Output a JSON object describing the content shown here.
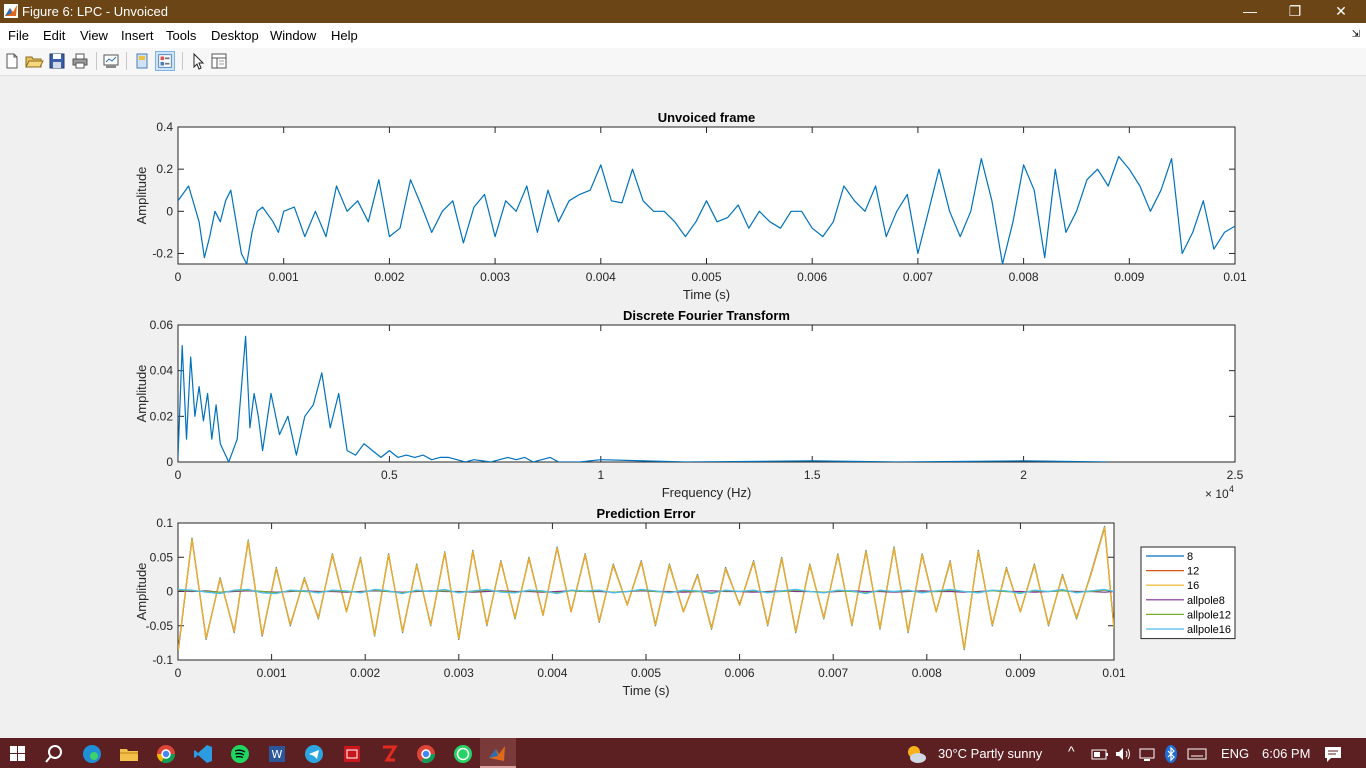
{
  "window": {
    "title": "Figure 6: LPC - Unvoiced",
    "minimize_glyph": "—",
    "restore_glyph": "❐",
    "close_glyph": "✕"
  },
  "menu": {
    "items": [
      "File",
      "Edit",
      "View",
      "Insert",
      "Tools",
      "Desktop",
      "Window",
      "Help"
    ],
    "expand_glyph": "⇲"
  },
  "toolbar": {
    "icons": [
      "new-figure-icon",
      "open-file-icon",
      "save-icon",
      "print-icon",
      "link-plot-icon",
      "hide-plot-tools-icon",
      "show-plot-tools-icon",
      "edit-plot-pointer-icon",
      "property-inspector-icon"
    ]
  },
  "colors": {
    "titlebar": "#6b4515",
    "taskbar": "#5c1f22",
    "series_8": "#0072bd",
    "series_12": "#d95319",
    "series_16": "#edb120",
    "series_allpole8": "#7e2f8e",
    "series_allpole12": "#77ac30",
    "series_allpole16": "#4dbeee"
  },
  "chart_data": [
    {
      "type": "line",
      "title": "Unvoiced frame",
      "xlabel": "Time (s)",
      "ylabel": "Amplitude",
      "xlim": [
        0,
        0.01
      ],
      "ylim": [
        -0.25,
        0.4
      ],
      "xticks": [
        0,
        0.001,
        0.002,
        0.003,
        0.004,
        0.005,
        0.006,
        0.007,
        0.008,
        0.009,
        0.01
      ],
      "xtick_labels": [
        "0",
        "0.001",
        "0.002",
        "0.003",
        "0.004",
        "0.005",
        "0.006",
        "0.007",
        "0.008",
        "0.009",
        "0.01"
      ],
      "yticks": [
        -0.2,
        0,
        0.2,
        0.4
      ],
      "ytick_labels": [
        "-0.2",
        "0",
        "0.2",
        "0.4"
      ],
      "grid": false,
      "series": [
        {
          "color": "#0072bd",
          "x": [
            0,
            0.0001,
            0.0002,
            0.00025,
            0.0003,
            0.00035,
            0.0004,
            0.00045,
            0.0005,
            0.0006,
            0.00065,
            0.0007,
            0.00075,
            0.0008,
            0.0009,
            0.00095,
            0.001,
            0.0011,
            0.0012,
            0.0013,
            0.0014,
            0.0015,
            0.0016,
            0.0017,
            0.0018,
            0.0019,
            0.002,
            0.0021,
            0.0022,
            0.0023,
            0.0024,
            0.0025,
            0.0026,
            0.0027,
            0.0028,
            0.0029,
            0.003,
            0.0031,
            0.0032,
            0.0033,
            0.0034,
            0.0035,
            0.0036,
            0.0037,
            0.0038,
            0.0039,
            0.004,
            0.0041,
            0.0042,
            0.0043,
            0.0044,
            0.0045,
            0.0046,
            0.0047,
            0.0048,
            0.0049,
            0.005,
            0.0051,
            0.0052,
            0.0053,
            0.0054,
            0.0055,
            0.0056,
            0.0057,
            0.0058,
            0.0059,
            0.006,
            0.0061,
            0.0062,
            0.0063,
            0.0064,
            0.0065,
            0.0066,
            0.0067,
            0.0068,
            0.0069,
            0.007,
            0.0071,
            0.0072,
            0.0073,
            0.0074,
            0.0075,
            0.0076,
            0.0077,
            0.0078,
            0.0079,
            0.008,
            0.0081,
            0.0082,
            0.0083,
            0.0084,
            0.0085,
            0.0086,
            0.0087,
            0.0088,
            0.0089,
            0.009,
            0.0091,
            0.0092,
            0.0093,
            0.0094,
            0.0095,
            0.0096,
            0.0097,
            0.0098,
            0.0099,
            0.01
          ],
          "y": [
            0.05,
            0.12,
            -0.05,
            -0.22,
            -0.12,
            0.0,
            -0.05,
            0.05,
            0.1,
            -0.2,
            -0.25,
            -0.1,
            0.0,
            0.02,
            -0.05,
            -0.1,
            0.0,
            0.02,
            -0.12,
            0.0,
            -0.12,
            0.12,
            0.0,
            0.05,
            -0.05,
            0.15,
            -0.12,
            -0.08,
            0.15,
            0.03,
            -0.1,
            0.0,
            0.05,
            -0.15,
            0.02,
            0.08,
            -0.12,
            0.05,
            0.0,
            0.12,
            -0.1,
            0.1,
            -0.05,
            0.05,
            0.08,
            0.1,
            0.22,
            0.05,
            0.04,
            0.2,
            0.05,
            0.0,
            0.0,
            -0.05,
            -0.12,
            -0.05,
            0.05,
            -0.05,
            -0.03,
            0.03,
            -0.08,
            0.0,
            -0.05,
            -0.08,
            0.0,
            0.0,
            -0.08,
            -0.12,
            -0.05,
            0.12,
            0.05,
            0.0,
            0.12,
            -0.12,
            0.0,
            0.08,
            -0.2,
            0.0,
            0.2,
            0.0,
            -0.12,
            0.0,
            0.25,
            0.05,
            -0.25,
            -0.05,
            0.22,
            0.1,
            -0.22,
            0.2,
            -0.1,
            0.0,
            0.15,
            0.2,
            0.12,
            0.26,
            0.2,
            0.12,
            0.0,
            0.1,
            0.25,
            -0.2,
            -0.1,
            0.05,
            -0.18,
            -0.1,
            -0.07
          ]
        }
      ]
    },
    {
      "type": "line",
      "title": "Discrete Fourier Transform",
      "xlabel": "Frequency (Hz)",
      "ylabel": "Amplitude",
      "xlim": [
        0,
        25000
      ],
      "ylim": [
        0,
        0.06
      ],
      "xticks": [
        0,
        5000,
        10000,
        15000,
        20000,
        25000
      ],
      "xtick_labels": [
        "0",
        "0.5",
        "1",
        "1.5",
        "2",
        "2.5"
      ],
      "yticks": [
        0,
        0.02,
        0.04,
        0.06
      ],
      "ytick_labels": [
        "0",
        "0.02",
        "0.04",
        "0.06"
      ],
      "x_exponent_base": "× 10",
      "x_exponent_power": "4",
      "grid": false,
      "series": [
        {
          "color": "#0072bd",
          "x": [
            0,
            100,
            200,
            300,
            400,
            500,
            600,
            700,
            800,
            900,
            1000,
            1200,
            1300,
            1400,
            1600,
            1700,
            1800,
            1900,
            2000,
            2200,
            2400,
            2600,
            2800,
            3000,
            3200,
            3400,
            3600,
            3800,
            4000,
            4200,
            4400,
            4600,
            4800,
            5000,
            5200,
            5400,
            5600,
            5800,
            6000,
            6200,
            6400,
            6600,
            6800,
            7000,
            7400,
            7800,
            8000,
            8200,
            8400,
            8600,
            8800,
            9000,
            9500,
            10000,
            12000,
            15000,
            17000,
            20000,
            22000
          ],
          "y": [
            0.002,
            0.051,
            0.01,
            0.046,
            0.02,
            0.033,
            0.018,
            0.03,
            0.01,
            0.025,
            0.008,
            0.0,
            0.005,
            0.01,
            0.055,
            0.015,
            0.03,
            0.02,
            0.005,
            0.03,
            0.012,
            0.02,
            0.003,
            0.02,
            0.025,
            0.039,
            0.015,
            0.03,
            0.005,
            0.003,
            0.008,
            0.005,
            0.002,
            0.005,
            0.002,
            0.003,
            0.002,
            0.003,
            0.001,
            0.002,
            0.002,
            0.001,
            0.0,
            0.001,
            0.0,
            0.002,
            0.001,
            0.002,
            0.0,
            0.001,
            0.002,
            0.0,
            0.0,
            0.001,
            0.0,
            0.0005,
            0.0,
            0.0005,
            0.0
          ]
        }
      ]
    },
    {
      "type": "line",
      "title": "Prediction Error",
      "xlabel": "Time (s)",
      "ylabel": "Amplitude",
      "xlim": [
        0,
        0.01
      ],
      "ylim": [
        -0.1,
        0.1
      ],
      "xticks": [
        0,
        0.001,
        0.002,
        0.003,
        0.004,
        0.005,
        0.006,
        0.007,
        0.008,
        0.009,
        0.01
      ],
      "xtick_labels": [
        "0",
        "0.001",
        "0.002",
        "0.003",
        "0.004",
        "0.005",
        "0.006",
        "0.007",
        "0.008",
        "0.009",
        "0.01"
      ],
      "yticks": [
        -0.1,
        -0.05,
        0,
        0.05,
        0.1
      ],
      "ytick_labels": [
        "-0.1",
        "-0.05",
        "0",
        "0.05",
        "0.1"
      ],
      "grid": false,
      "legend_position": "outside-right",
      "x": [
        0,
        0.00015,
        0.0003,
        0.00045,
        0.0006,
        0.00075,
        0.0009,
        0.00105,
        0.0012,
        0.00135,
        0.0015,
        0.00165,
        0.0018,
        0.00195,
        0.0021,
        0.00225,
        0.0024,
        0.00255,
        0.0027,
        0.00285,
        0.003,
        0.00315,
        0.0033,
        0.00345,
        0.0036,
        0.00375,
        0.0039,
        0.00405,
        0.0042,
        0.00435,
        0.0045,
        0.00465,
        0.0048,
        0.00495,
        0.0051,
        0.00525,
        0.0054,
        0.00555,
        0.0057,
        0.00585,
        0.006,
        0.00615,
        0.0063,
        0.00645,
        0.0066,
        0.00675,
        0.0069,
        0.00705,
        0.0072,
        0.00735,
        0.0075,
        0.00765,
        0.0078,
        0.00795,
        0.0081,
        0.00825,
        0.0084,
        0.00855,
        0.0087,
        0.00885,
        0.009,
        0.00915,
        0.0093,
        0.00945,
        0.0096,
        0.00975,
        0.0099,
        0.01
      ],
      "series": [
        {
          "name": "8",
          "color": "#0072bd",
          "y": [
            -0.09,
            0.078,
            -0.07,
            0.02,
            -0.06,
            0.075,
            -0.065,
            0.035,
            -0.05,
            0.02,
            -0.04,
            0.055,
            -0.03,
            0.05,
            -0.065,
            0.055,
            -0.06,
            0.04,
            -0.05,
            0.058,
            -0.07,
            0.06,
            -0.05,
            0.045,
            -0.04,
            0.05,
            -0.035,
            0.065,
            -0.03,
            0.055,
            -0.045,
            0.04,
            -0.02,
            0.045,
            -0.05,
            0.04,
            -0.03,
            0.025,
            -0.055,
            0.035,
            -0.02,
            0.045,
            -0.05,
            0.05,
            -0.06,
            0.04,
            -0.04,
            0.055,
            -0.05,
            0.06,
            -0.055,
            0.065,
            -0.06,
            0.055,
            -0.03,
            0.045,
            -0.085,
            0.06,
            -0.05,
            0.035,
            -0.03,
            0.04,
            -0.05,
            0.025,
            -0.04,
            0.025,
            0.095,
            -0.055
          ]
        },
        {
          "name": "12",
          "color": "#d95319",
          "y": [
            -0.088,
            0.076,
            -0.068,
            0.018,
            -0.058,
            0.073,
            -0.064,
            0.033,
            -0.048,
            0.018,
            -0.038,
            0.053,
            -0.029,
            0.048,
            -0.063,
            0.053,
            -0.058,
            0.038,
            -0.048,
            0.056,
            -0.068,
            0.058,
            -0.048,
            0.043,
            -0.038,
            0.048,
            -0.034,
            0.063,
            -0.029,
            0.053,
            -0.043,
            0.038,
            -0.019,
            0.043,
            -0.048,
            0.038,
            -0.029,
            0.023,
            -0.053,
            0.033,
            -0.019,
            0.043,
            -0.048,
            0.048,
            -0.058,
            0.038,
            -0.038,
            0.053,
            -0.048,
            0.058,
            -0.053,
            0.063,
            -0.058,
            0.053,
            -0.029,
            0.043,
            -0.083,
            0.058,
            -0.048,
            0.033,
            -0.029,
            0.038,
            -0.048,
            0.023,
            -0.038,
            0.023,
            0.093,
            -0.053
          ]
        },
        {
          "name": "16",
          "color": "#edb120",
          "y": [
            -0.087,
            0.077,
            -0.069,
            0.019,
            -0.059,
            0.074,
            -0.063,
            0.034,
            -0.049,
            0.019,
            -0.039,
            0.054,
            -0.03,
            0.049,
            -0.064,
            0.054,
            -0.059,
            0.039,
            -0.049,
            0.057,
            -0.069,
            0.059,
            -0.049,
            0.044,
            -0.039,
            0.049,
            -0.035,
            0.064,
            -0.03,
            0.054,
            -0.044,
            0.039,
            -0.02,
            0.044,
            -0.049,
            0.039,
            -0.03,
            0.024,
            -0.054,
            0.034,
            -0.02,
            0.044,
            -0.049,
            0.049,
            -0.059,
            0.039,
            -0.039,
            0.054,
            -0.049,
            0.059,
            -0.054,
            0.064,
            -0.059,
            0.054,
            -0.03,
            0.044,
            -0.084,
            0.059,
            -0.049,
            0.034,
            -0.03,
            0.039,
            -0.049,
            0.024,
            -0.039,
            0.024,
            0.094,
            -0.054
          ]
        },
        {
          "name": "allpole8",
          "color": "#7e2f8e",
          "y": [
            0.001,
            0.0,
            0.001,
            -0.001,
            0.0,
            0.001,
            0.0,
            -0.001,
            0.0,
            0.001,
            0.0,
            0.0,
            -0.001,
            0.0,
            0.001,
            0.0,
            -0.001,
            0.0,
            0.001,
            0.0,
            0.0,
            -0.001,
            0.0,
            0.001,
            0.0,
            0.0,
            -0.001,
            0.0,
            0.001,
            0.0,
            0.0,
            -0.001,
            0.0,
            0.001,
            0.0,
            0.0,
            -0.001,
            0.0,
            0.001,
            0.0,
            0.0,
            -0.001,
            0.0,
            0.001,
            0.0,
            0.0,
            -0.001,
            0.0,
            0.001,
            0.0,
            0.0,
            -0.001,
            0.0,
            0.001,
            0.0,
            0.0,
            -0.001,
            0.0,
            0.001,
            0.0,
            0.0,
            -0.001,
            0.0,
            0.001,
            0.0,
            0.0,
            -0.001,
            0.0
          ]
        },
        {
          "name": "allpole12",
          "color": "#77ac30",
          "y": [
            0.002,
            0.001,
            0.0,
            -0.001,
            0.001,
            0.002,
            0.0,
            -0.002,
            0.001,
            0.0,
            -0.001,
            0.001,
            0.0,
            -0.001,
            0.002,
            0.0,
            -0.002,
            0.001,
            0.0,
            0.001,
            -0.001,
            0.0,
            0.002,
            0.0,
            -0.001,
            0.001,
            0.0,
            -0.002,
            0.001,
            0.0,
            0.001,
            -0.001,
            0.0,
            0.002,
            0.0,
            -0.001,
            0.001,
            0.0,
            -0.002,
            0.001,
            0.0,
            0.001,
            -0.001,
            0.0,
            0.002,
            0.0,
            -0.001,
            0.001,
            0.0,
            -0.002,
            0.001,
            0.0,
            0.001,
            -0.001,
            0.0,
            0.002,
            0.0,
            -0.001,
            0.001,
            0.0,
            -0.002,
            0.001,
            0.0,
            0.001,
            -0.001,
            0.0,
            0.002,
            0.0
          ]
        },
        {
          "name": "allpole16",
          "color": "#4dbeee",
          "y": [
            0.003,
            0.002,
            -0.001,
            -0.003,
            0.002,
            0.003,
            -0.002,
            -0.003,
            0.002,
            0.001,
            -0.002,
            0.002,
            0.001,
            -0.002,
            0.003,
            0.001,
            -0.003,
            0.002,
            0.0,
            0.003,
            -0.002,
            0.001,
            0.003,
            -0.001,
            -0.002,
            0.002,
            0.001,
            -0.003,
            0.002,
            0.001,
            0.002,
            -0.002,
            0.0,
            0.003,
            0.001,
            -0.002,
            0.002,
            0.001,
            -0.003,
            0.002,
            0.0,
            0.002,
            -0.002,
            0.001,
            0.003,
            0.0,
            -0.002,
            0.002,
            0.001,
            -0.003,
            0.002,
            0.0,
            0.002,
            -0.002,
            0.001,
            0.003,
            0.0,
            -0.002,
            0.002,
            0.001,
            -0.003,
            0.002,
            0.0,
            0.003,
            -0.002,
            0.001,
            0.003,
            0.0
          ]
        }
      ]
    }
  ],
  "taskbar": {
    "apps": [
      "start-icon",
      "search-icon",
      "edge-icon",
      "file-explorer-icon",
      "chrome-icon",
      "vscode-icon",
      "spotify-icon",
      "word-icon",
      "telegram-icon",
      "adobe-icon",
      "filezilla-icon",
      "chrome-profile-icon",
      "whatsapp-icon",
      "matlab-icon"
    ],
    "weather": "30°C  Partly sunny",
    "language": "ENG",
    "time": "6:06 PM"
  }
}
